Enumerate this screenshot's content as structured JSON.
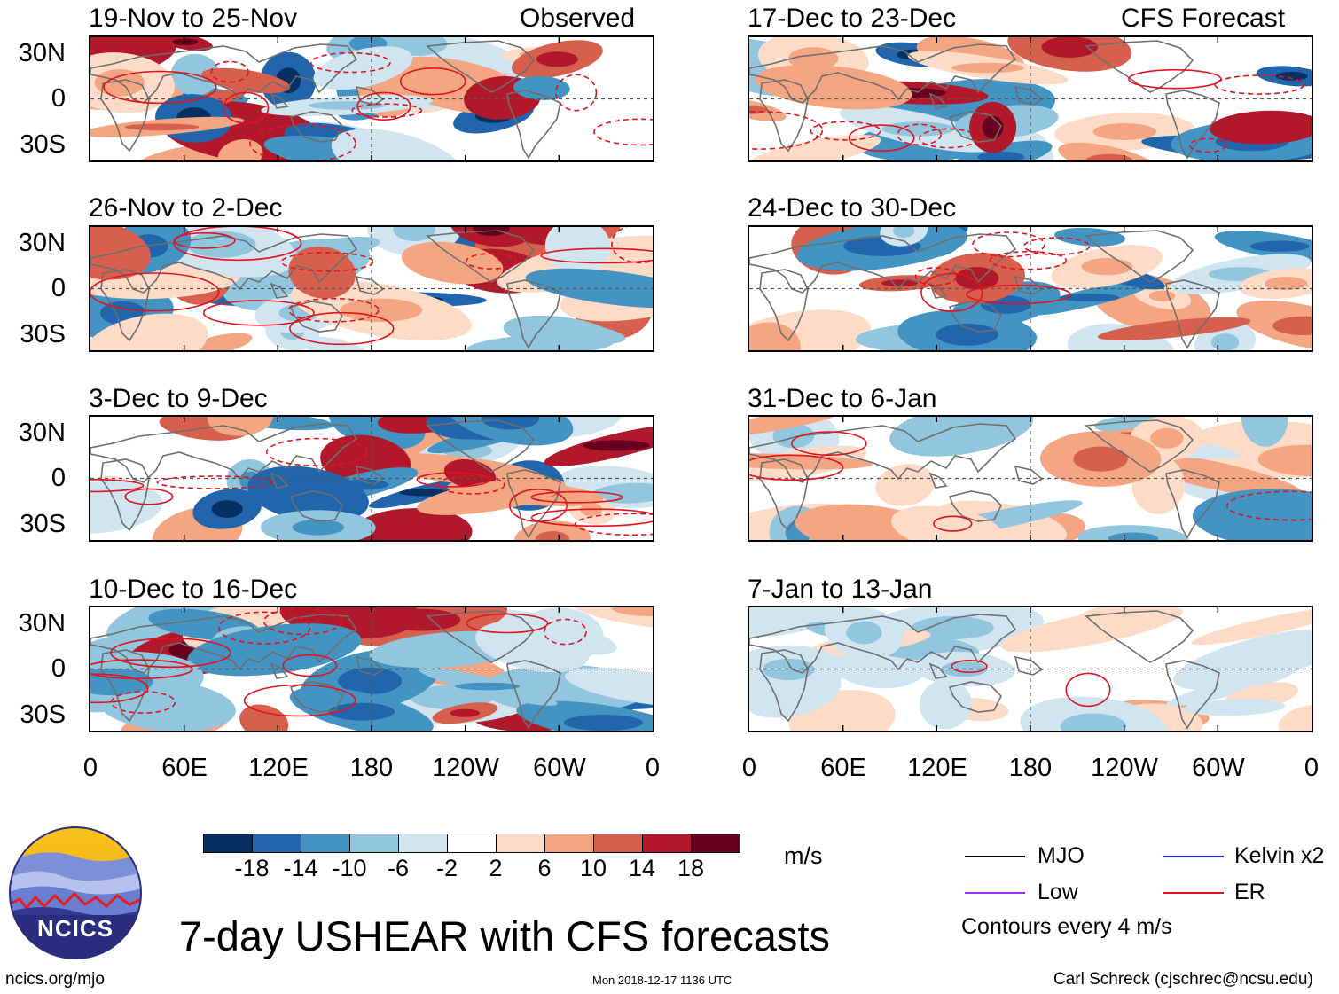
{
  "header": {
    "observed_label": "Observed",
    "forecast_label": "CFS Forecast"
  },
  "panels": [
    {
      "title": "19-Nov to 25-Nov",
      "kind": "observed"
    },
    {
      "title": "26-Nov to 2-Dec",
      "kind": "observed"
    },
    {
      "title": "3-Dec to 9-Dec",
      "kind": "observed"
    },
    {
      "title": "10-Dec to 16-Dec",
      "kind": "observed"
    },
    {
      "title": "17-Dec to 23-Dec",
      "kind": "forecast"
    },
    {
      "title": "24-Dec to 30-Dec",
      "kind": "forecast"
    },
    {
      "title": "31-Dec to 6-Jan",
      "kind": "forecast"
    },
    {
      "title": "7-Jan to 13-Jan",
      "kind": "forecast"
    }
  ],
  "axes": {
    "lat_labels": [
      "30N",
      "0",
      "30S"
    ],
    "lon_labels": [
      "0",
      "60E",
      "120E",
      "180",
      "120W",
      "60W",
      "0"
    ]
  },
  "colorbar": {
    "unit": "m/s",
    "tick_labels": [
      "-18",
      "-14",
      "-10",
      "-6",
      "-2",
      "2",
      "6",
      "10",
      "14",
      "18"
    ],
    "colors": [
      "#053061",
      "#2166ac",
      "#4393c3",
      "#92c5de",
      "#d1e5f0",
      "#ffffff",
      "#fddbc7",
      "#f4a582",
      "#d6604d",
      "#b2182b",
      "#67001f"
    ]
  },
  "legend": {
    "items": [
      {
        "label": "MJO",
        "color": "#000000"
      },
      {
        "label": "Kelvin x2",
        "color": "#1e22d6"
      },
      {
        "label": "Low",
        "color": "#9b30ff"
      },
      {
        "label": "ER",
        "color": "#e0141e"
      }
    ],
    "note": "Contours every 4 m/s"
  },
  "logo": {
    "text": "NCICS"
  },
  "footer": {
    "title": "7-day USHEAR with CFS forecasts",
    "site": "ncics.org/mjo",
    "timestamp": "Mon 2018-12-17 1136 UTC",
    "credit": "Carl Schreck (cjschrec@ncsu.edu)"
  }
}
